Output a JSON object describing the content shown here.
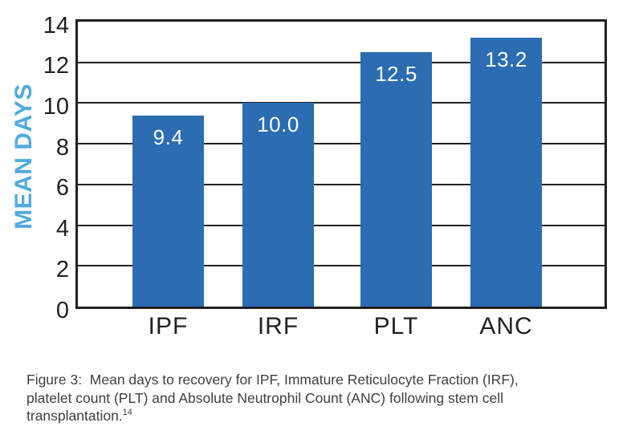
{
  "chart_data": {
    "type": "bar",
    "categories": [
      "IPF",
      "IRF",
      "PLT",
      "ANC"
    ],
    "values": [
      9.4,
      10.0,
      12.5,
      13.2
    ],
    "value_labels": [
      "9.4",
      "10.0",
      "12.5",
      "13.2"
    ],
    "title": "",
    "xlabel": "",
    "ylabel": "MEAN DAYS",
    "ylim": [
      0,
      14
    ],
    "yticks": [
      0,
      2,
      4,
      6,
      8,
      10,
      12,
      14
    ],
    "grid": true,
    "legend": "none",
    "bar_color": "#2b6cb3",
    "ylabel_color": "#4fabe1",
    "axis_color": "#231f20"
  },
  "caption": {
    "line1": "Figure 3:  Mean days to recovery for IPF, Immature Reticulocyte Fraction (IRF),",
    "line2": "platelet count (PLT) and Absolute Neutrophil Count (ANC) following stem cell",
    "line3": "transplantation.",
    "superscript": "14"
  }
}
